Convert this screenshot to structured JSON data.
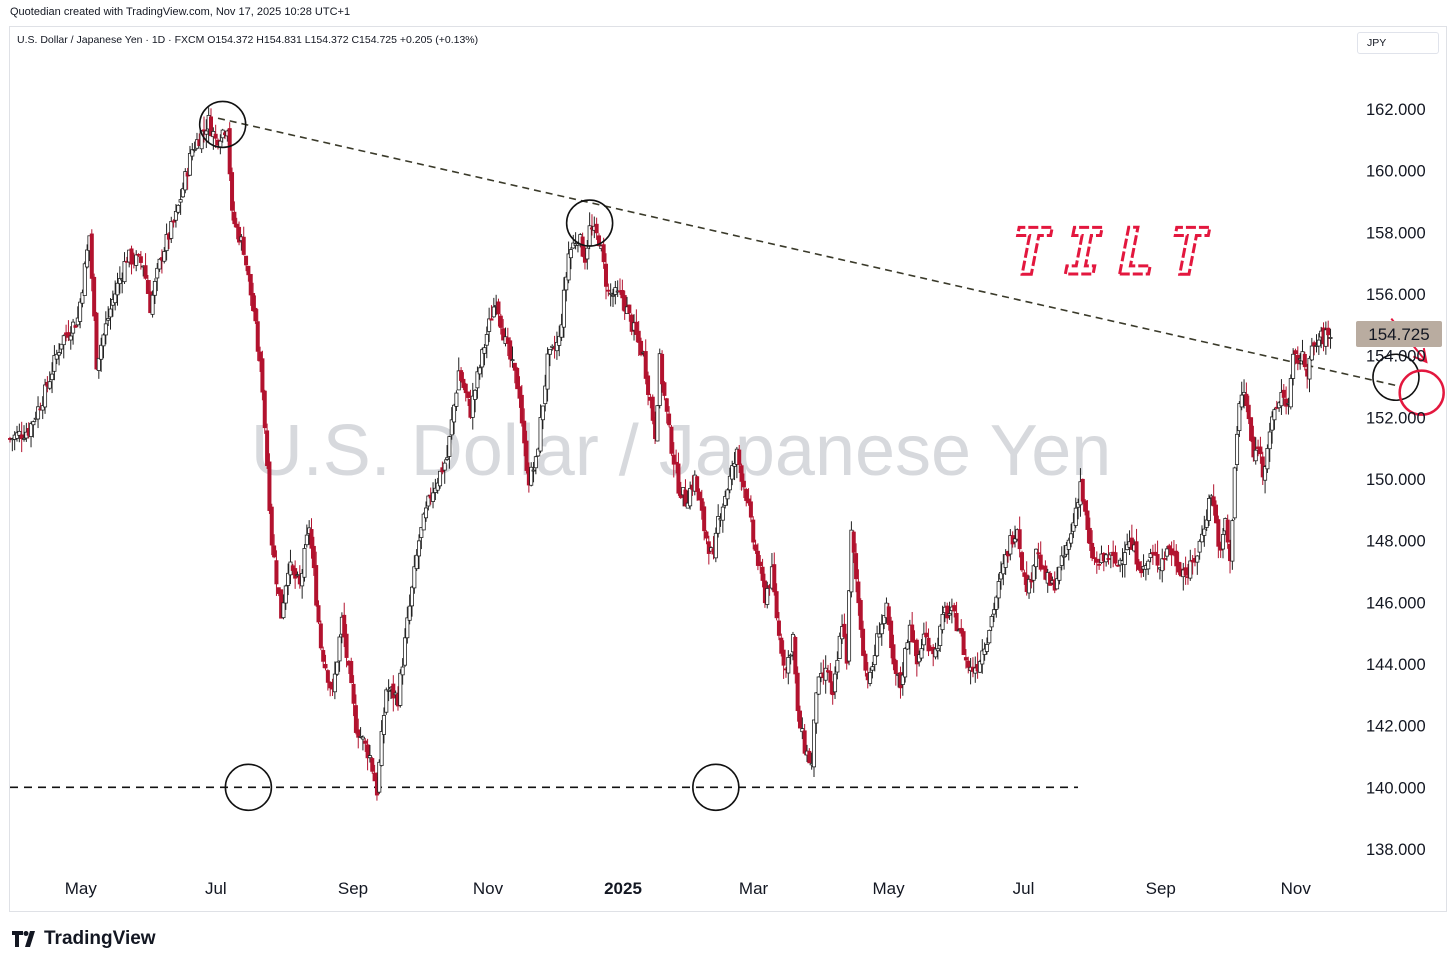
{
  "header": {
    "credit": "Quotedian created with TradingView.com, Nov 17, 2025 10:28 UTC+1",
    "symbol_line": "U.S. Dollar / Japanese Yen · 1D · FXCM  O154.372  H154.831  L154.372  C154.725  +0.205 (+0.13%)",
    "currency": "JPY"
  },
  "footer": {
    "brand": "TradingView"
  },
  "colors": {
    "up": "#ffffff",
    "down": "#b2122e",
    "wick": "#222222",
    "annotation": "#e3173e",
    "price_tag": "#b9aca0",
    "watermark": "#d7d9dd"
  },
  "chart_data": {
    "type": "candlestick",
    "title": "U.S. Dollar / Japanese Yen",
    "watermark": "U.S. Dollar / Japanese Yen",
    "annotation_text": "TILT",
    "last_price_label": "154.725",
    "y_ticks": [
      "162.000",
      "160.000",
      "158.000",
      "156.000",
      "154.000",
      "152.000",
      "150.000",
      "148.000",
      "146.000",
      "144.000",
      "142.000",
      "140.000",
      "138.000"
    ],
    "ylim": [
      137.2,
      163.5
    ],
    "x_ticks": [
      {
        "label": "May",
        "day": 91,
        "bold": false
      },
      {
        "label": "Jul",
        "day": 152,
        "bold": false
      },
      {
        "label": "Sep",
        "day": 214,
        "bold": false
      },
      {
        "label": "Nov",
        "day": 275,
        "bold": false
      },
      {
        "label": "2025",
        "day": 336,
        "bold": true
      },
      {
        "label": "Mar",
        "day": 395,
        "bold": false
      },
      {
        "label": "May",
        "day": 456,
        "bold": false
      },
      {
        "label": "Jul",
        "day": 517,
        "bold": false
      },
      {
        "label": "Sep",
        "day": 579,
        "bold": false
      },
      {
        "label": "Nov",
        "day": 640,
        "bold": false
      }
    ],
    "xlim_days": [
      59,
      660
    ],
    "start_date": "2024-04-01",
    "anchors": [
      [
        0,
        151.3
      ],
      [
        8,
        151.6
      ],
      [
        15,
        152.8
      ],
      [
        22,
        154.5
      ],
      [
        29,
        155.2
      ],
      [
        34,
        157.9
      ],
      [
        37,
        153.8
      ],
      [
        44,
        155.8
      ],
      [
        50,
        157.2
      ],
      [
        57,
        157.0
      ],
      [
        60,
        155.6
      ],
      [
        65,
        157.3
      ],
      [
        71,
        158.5
      ],
      [
        78,
        160.7
      ],
      [
        85,
        161.6
      ],
      [
        88,
        161.0
      ],
      [
        93,
        161.5
      ],
      [
        95,
        158.5
      ],
      [
        100,
        157.5
      ],
      [
        104,
        155.5
      ],
      [
        108,
        153.0
      ],
      [
        112,
        148.0
      ],
      [
        116,
        145.6
      ],
      [
        119,
        147.2
      ],
      [
        124,
        146.5
      ],
      [
        128,
        148.5
      ],
      [
        133,
        144.6
      ],
      [
        138,
        143.0
      ],
      [
        142,
        145.4
      ],
      [
        148,
        142.0
      ],
      [
        154,
        141.0
      ],
      [
        157,
        139.9
      ],
      [
        161,
        143.2
      ],
      [
        166,
        142.9
      ],
      [
        170,
        145.3
      ],
      [
        175,
        148.0
      ],
      [
        180,
        149.5
      ],
      [
        187,
        150.7
      ],
      [
        192,
        153.5
      ],
      [
        197,
        152.2
      ],
      [
        204,
        154.7
      ],
      [
        208,
        155.9
      ],
      [
        212,
        154.4
      ],
      [
        218,
        152.8
      ],
      [
        220,
        151.0
      ],
      [
        222,
        150.0
      ],
      [
        225,
        150.5
      ],
      [
        230,
        153.8
      ],
      [
        235,
        154.5
      ],
      [
        239,
        157.3
      ],
      [
        243,
        157.9
      ],
      [
        246,
        157.2
      ],
      [
        248,
        158.1
      ],
      [
        252,
        157.8
      ],
      [
        256,
        156.0
      ],
      [
        262,
        155.9
      ],
      [
        266,
        155.0
      ],
      [
        271,
        154.0
      ],
      [
        276,
        151.5
      ],
      [
        278,
        153.8
      ],
      [
        282,
        151.5
      ],
      [
        286,
        149.8
      ],
      [
        289,
        149.3
      ],
      [
        293,
        150.0
      ],
      [
        297,
        148.4
      ],
      [
        301,
        147.3
      ],
      [
        303,
        148.7
      ],
      [
        308,
        150.0
      ],
      [
        311,
        150.8
      ],
      [
        315,
        149.5
      ],
      [
        318,
        148.0
      ],
      [
        323,
        146.2
      ],
      [
        326,
        146.9
      ],
      [
        329,
        144.9
      ],
      [
        332,
        143.8
      ],
      [
        335,
        144.9
      ],
      [
        337,
        142.3
      ],
      [
        340,
        141.3
      ],
      [
        343,
        140.7
      ],
      [
        345,
        143.2
      ],
      [
        350,
        143.8
      ],
      [
        352,
        142.8
      ],
      [
        356,
        145.4
      ],
      [
        358,
        144.2
      ],
      [
        360,
        148.2
      ],
      [
        363,
        146.0
      ],
      [
        366,
        143.8
      ],
      [
        368,
        143.5
      ],
      [
        372,
        145.2
      ],
      [
        375,
        145.7
      ],
      [
        378,
        143.8
      ],
      [
        381,
        143.3
      ],
      [
        385,
        145.4
      ],
      [
        388,
        144.0
      ],
      [
        391,
        144.9
      ],
      [
        396,
        144.4
      ],
      [
        400,
        145.7
      ],
      [
        403,
        145.6
      ],
      [
        406,
        145.2
      ],
      [
        409,
        144.1
      ],
      [
        411,
        143.8
      ],
      [
        414,
        144.0
      ],
      [
        418,
        144.9
      ],
      [
        423,
        146.5
      ],
      [
        428,
        148.0
      ],
      [
        431,
        148.5
      ],
      [
        434,
        146.7
      ],
      [
        436,
        146.5
      ],
      [
        439,
        147.8
      ],
      [
        442,
        146.9
      ],
      [
        446,
        146.5
      ],
      [
        449,
        147.0
      ],
      [
        454,
        148.2
      ],
      [
        458,
        149.9
      ],
      [
        462,
        147.7
      ],
      [
        465,
        147.2
      ],
      [
        470,
        147.5
      ],
      [
        474,
        147.2
      ],
      [
        478,
        148.0
      ],
      [
        482,
        147.5
      ],
      [
        485,
        147.0
      ],
      [
        488,
        147.5
      ],
      [
        492,
        147.3
      ],
      [
        496,
        147.8
      ],
      [
        500,
        147.2
      ],
      [
        504,
        146.9
      ],
      [
        508,
        147.6
      ],
      [
        510,
        148.2
      ],
      [
        514,
        149.6
      ],
      [
        518,
        147.5
      ],
      [
        520,
        148.7
      ],
      [
        522,
        147.2
      ],
      [
        524,
        150.5
      ],
      [
        526,
        152.4
      ],
      [
        528,
        152.8
      ],
      [
        530,
        151.9
      ],
      [
        532,
        150.6
      ],
      [
        534,
        151.2
      ],
      [
        536,
        150.2
      ],
      [
        539,
        151.6
      ],
      [
        541,
        152.0
      ],
      [
        544,
        152.8
      ],
      [
        547,
        152.4
      ],
      [
        549,
        153.8
      ],
      [
        552,
        154.0
      ],
      [
        555,
        153.6
      ],
      [
        557,
        154.1
      ],
      [
        560,
        154.5
      ],
      [
        562,
        154.6
      ],
      [
        565,
        154.7
      ]
    ],
    "trendline_descending": [
      [
        89,
        161.7
      ],
      [
        595,
        153.0
      ]
    ],
    "support_line": {
      "value": 140.0,
      "day_start": 59,
      "day_end": 480
    },
    "black_circles": [
      [
        91,
        161.5
      ],
      [
        248,
        158.3
      ],
      [
        102,
        140.0
      ],
      [
        302,
        140.0
      ],
      [
        593,
        153.3
      ]
    ],
    "red_circle": [
      604,
      152.8
    ],
    "arrow": {
      "from": [
        591,
        155.2
      ],
      "to": [
        606,
        153.8
      ]
    }
  }
}
